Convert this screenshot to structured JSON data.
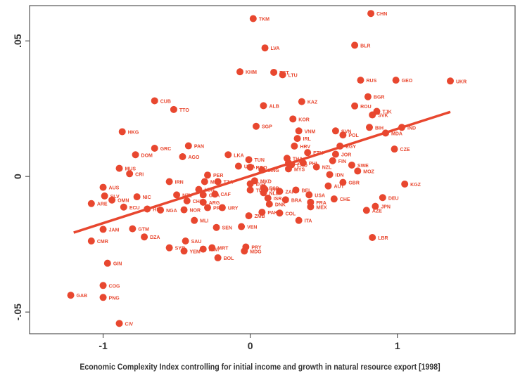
{
  "chart_data": {
    "type": "scatter",
    "title": "",
    "xlabel": "Economic Complexity Index controlling for initial income and growth in natural resource export [1998]",
    "ylabel": "",
    "xlim": [
      -1.5,
      1.8
    ],
    "ylim": [
      -0.058,
      0.063
    ],
    "xticks": [
      {
        "v": -1,
        "label": "-1"
      },
      {
        "v": 0,
        "label": "0"
      },
      {
        "v": 1,
        "label": "1"
      }
    ],
    "yticks": [
      {
        "v": 0.05,
        "label": ".05"
      },
      {
        "v": 0,
        "label": "0"
      },
      {
        "v": -0.05,
        "label": "-.05"
      }
    ],
    "grid": false,
    "colors": {
      "points": "#e8472f",
      "fit": "#e8472f",
      "axis": "#333333",
      "text": "#333333"
    },
    "fit_line": {
      "x": [
        -1.2,
        1.36
      ],
      "y": [
        -0.0207,
        0.0238
      ]
    },
    "points": [
      {
        "label": "CHN",
        "x": 0.82,
        "y": 0.0601
      },
      {
        "label": "TKM",
        "x": 0.02,
        "y": 0.0582
      },
      {
        "label": "BLR",
        "x": 0.71,
        "y": 0.0484
      },
      {
        "label": "LVA",
        "x": 0.1,
        "y": 0.0474
      },
      {
        "label": "KHM",
        "x": -0.07,
        "y": 0.0386
      },
      {
        "label": "EST",
        "x": 0.16,
        "y": 0.0384
      },
      {
        "label": "LTU",
        "x": 0.22,
        "y": 0.0375
      },
      {
        "label": "RUS",
        "x": 0.75,
        "y": 0.0355
      },
      {
        "label": "GEO",
        "x": 0.99,
        "y": 0.0355
      },
      {
        "label": "UKR",
        "x": 1.36,
        "y": 0.0352
      },
      {
        "label": "BGR",
        "x": 0.8,
        "y": 0.0294
      },
      {
        "label": "CUB",
        "x": -0.65,
        "y": 0.0279
      },
      {
        "label": "KAZ",
        "x": 0.35,
        "y": 0.0276
      },
      {
        "label": "ALB",
        "x": 0.09,
        "y": 0.0261
      },
      {
        "label": "ROU",
        "x": 0.71,
        "y": 0.026
      },
      {
        "label": "TTO",
        "x": -0.52,
        "y": 0.0247
      },
      {
        "label": "TJK",
        "x": 0.86,
        "y": 0.024
      },
      {
        "label": "SVK",
        "x": 0.83,
        "y": 0.0227
      },
      {
        "label": "KOR",
        "x": 0.29,
        "y": 0.0212
      },
      {
        "label": "SGP",
        "x": 0.04,
        "y": 0.0185
      },
      {
        "label": "BIH",
        "x": 0.81,
        "y": 0.0181
      },
      {
        "label": "IND",
        "x": 1.03,
        "y": 0.0181
      },
      {
        "label": "VNM",
        "x": 0.33,
        "y": 0.0168
      },
      {
        "label": "SVN",
        "x": 0.58,
        "y": 0.0168
      },
      {
        "label": "HKG",
        "x": -0.87,
        "y": 0.0165
      },
      {
        "label": "MDA",
        "x": 0.92,
        "y": 0.016
      },
      {
        "label": "POL",
        "x": 0.63,
        "y": 0.0153
      },
      {
        "label": "IRL",
        "x": 0.32,
        "y": 0.014
      },
      {
        "label": "HRV",
        "x": 0.3,
        "y": 0.0112
      },
      {
        "label": "EGY_upper",
        "x": 0.61,
        "y": 0.0112
      },
      {
        "label": "PAN",
        "x": -0.42,
        "y": 0.0113
      },
      {
        "label": "GRC",
        "x": -0.65,
        "y": 0.0104
      },
      {
        "label": "CZE",
        "x": 0.98,
        "y": 0.0101
      },
      {
        "label": "ETH",
        "x": 0.39,
        "y": 0.0088
      },
      {
        "label": "DOM",
        "x": -0.78,
        "y": 0.008
      },
      {
        "label": "LKA",
        "x": -0.15,
        "y": 0.008
      },
      {
        "label": "JOR",
        "x": 0.58,
        "y": 0.0082
      },
      {
        "label": "AGO",
        "x": -0.46,
        "y": 0.0073
      },
      {
        "label": "THA",
        "x": 0.25,
        "y": 0.0067
      },
      {
        "label": "TUN",
        "x": -0.01,
        "y": 0.0062
      },
      {
        "label": "FIN",
        "x": 0.56,
        "y": 0.0058
      },
      {
        "label": "CAN",
        "x": 0.26,
        "y": 0.005
      },
      {
        "label": "LAO",
        "x": 0.28,
        "y": 0.0043
      },
      {
        "label": "SWE",
        "x": 0.69,
        "y": 0.0042
      },
      {
        "label": "PHL",
        "x": 0.36,
        "y": 0.005
      },
      {
        "label": "UGA",
        "x": -0.08,
        "y": 0.0038
      },
      {
        "label": "RGO",
        "x": 0.0,
        "y": 0.0034
      },
      {
        "label": "NZL",
        "x": 0.45,
        "y": 0.0035
      },
      {
        "label": "MUS",
        "x": -0.89,
        "y": 0.003
      },
      {
        "label": "MYS",
        "x": 0.26,
        "y": 0.0028
      },
      {
        "label": "MNG",
        "x": 0.08,
        "y": 0.0024
      },
      {
        "label": "MOZ",
        "x": 0.73,
        "y": 0.002
      },
      {
        "label": "CRI",
        "x": -0.82,
        "y": 0.001
      },
      {
        "label": "IDN",
        "x": 0.54,
        "y": 0.0007
      },
      {
        "label": "PER",
        "x": -0.29,
        "y": 0.0005
      },
      {
        "label": "MAR",
        "x": -0.31,
        "y": -0.0019
      },
      {
        "label": "IRN",
        "x": -0.55,
        "y": -0.0019
      },
      {
        "label": "TZA",
        "x": -0.22,
        "y": -0.0019
      },
      {
        "label": "MKD",
        "x": 0.03,
        "y": -0.0016
      },
      {
        "label": "EGY",
        "x": 0.0,
        "y": -0.0027
      },
      {
        "label": "GBR",
        "x": 0.63,
        "y": -0.0022
      },
      {
        "label": "KGZ",
        "x": 1.05,
        "y": -0.0028
      },
      {
        "label": "AUT",
        "x": 0.53,
        "y": -0.0035
      },
      {
        "label": "ESP",
        "x": 0.09,
        "y": -0.0042
      },
      {
        "label": "PRT_upper",
        "x": 0.1,
        "y": -0.0048
      },
      {
        "label": "TUR",
        "x": 0.0,
        "y": -0.005
      },
      {
        "label": "ZAF",
        "x": 0.2,
        "y": -0.0055
      },
      {
        "label": "BEL",
        "x": 0.31,
        "y": -0.005
      },
      {
        "label": "AUS",
        "x": -1.0,
        "y": -0.004
      },
      {
        "label": "LBN",
        "x": -0.35,
        "y": -0.0048
      },
      {
        "label": "CAF",
        "x": -0.24,
        "y": -0.0065
      },
      {
        "label": "NLD",
        "x": 0.09,
        "y": -0.006
      },
      {
        "label": "NZL2",
        "x": -0.5,
        "y": -0.0068
      },
      {
        "label": "SLV",
        "x": -0.99,
        "y": -0.0072
      },
      {
        "label": "NIC",
        "x": -0.77,
        "y": -0.0075
      },
      {
        "label": "GHA",
        "x": -0.32,
        "y": -0.0068
      },
      {
        "label": "USA",
        "x": 0.4,
        "y": -0.0068
      },
      {
        "label": "ISR",
        "x": 0.12,
        "y": -0.008
      },
      {
        "label": "BRA",
        "x": 0.24,
        "y": -0.0086
      },
      {
        "label": "CHE",
        "x": 0.57,
        "y": -0.0083
      },
      {
        "label": "DEU",
        "x": 0.9,
        "y": -0.0078
      },
      {
        "label": "OMN",
        "x": -0.94,
        "y": -0.0087
      },
      {
        "label": "CHL",
        "x": -0.43,
        "y": -0.009
      },
      {
        "label": "ARG",
        "x": -0.32,
        "y": -0.0095
      },
      {
        "label": "FRA",
        "x": 0.41,
        "y": -0.0095
      },
      {
        "label": "ARE",
        "x": -1.08,
        "y": -0.01
      },
      {
        "label": "DNK",
        "x": 0.13,
        "y": -0.0102
      },
      {
        "label": "ECU",
        "x": -0.86,
        "y": -0.0113
      },
      {
        "label": "JPN",
        "x": 0.85,
        "y": -0.011
      },
      {
        "label": "PRT",
        "x": -0.29,
        "y": -0.0115
      },
      {
        "label": "URY",
        "x": -0.19,
        "y": -0.0115
      },
      {
        "label": "MEX",
        "x": 0.41,
        "y": -0.0112
      },
      {
        "label": "HND",
        "x": -0.7,
        "y": -0.012
      },
      {
        "label": "NGA",
        "x": -0.61,
        "y": -0.0124
      },
      {
        "label": "NOR",
        "x": -0.45,
        "y": -0.0123
      },
      {
        "label": "AZE",
        "x": 0.79,
        "y": -0.0125
      },
      {
        "label": "PAK",
        "x": 0.08,
        "y": -0.0132
      },
      {
        "label": "COL",
        "x": 0.2,
        "y": -0.0135
      },
      {
        "label": "ZMB",
        "x": -0.01,
        "y": -0.0145
      },
      {
        "label": "MLI",
        "x": -0.38,
        "y": -0.0162
      },
      {
        "label": "ITA",
        "x": 0.33,
        "y": -0.0162
      },
      {
        "label": "JAM",
        "x": -1.0,
        "y": -0.0195
      },
      {
        "label": "GTM",
        "x": -0.8,
        "y": -0.0193
      },
      {
        "label": "SEN",
        "x": -0.23,
        "y": -0.0188
      },
      {
        "label": "VEN",
        "x": -0.06,
        "y": -0.0185
      },
      {
        "label": "DZA",
        "x": -0.72,
        "y": -0.0223
      },
      {
        "label": "LBR",
        "x": 0.83,
        "y": -0.0225
      },
      {
        "label": "CMR",
        "x": -1.08,
        "y": -0.0238
      },
      {
        "label": "SAU",
        "x": -0.44,
        "y": -0.0238
      },
      {
        "label": "SYR",
        "x": -0.55,
        "y": -0.0263
      },
      {
        "label": "MRT",
        "x": -0.26,
        "y": -0.0263
      },
      {
        "label": "YEM",
        "x": -0.45,
        "y": -0.0275
      },
      {
        "label": "MWI",
        "x": -0.32,
        "y": -0.0268
      },
      {
        "label": "PRY",
        "x": -0.03,
        "y": -0.026
      },
      {
        "label": "MDG",
        "x": -0.04,
        "y": -0.0275
      },
      {
        "label": "BOL",
        "x": -0.22,
        "y": -0.03
      },
      {
        "label": "GIN",
        "x": -0.97,
        "y": -0.032
      },
      {
        "label": "COG",
        "x": -1.0,
        "y": -0.0402
      },
      {
        "label": "GAB",
        "x": -1.22,
        "y": -0.0438
      },
      {
        "label": "PNG",
        "x": -1.0,
        "y": -0.0446
      },
      {
        "label": "CIV",
        "x": -0.89,
        "y": -0.0542
      }
    ]
  }
}
